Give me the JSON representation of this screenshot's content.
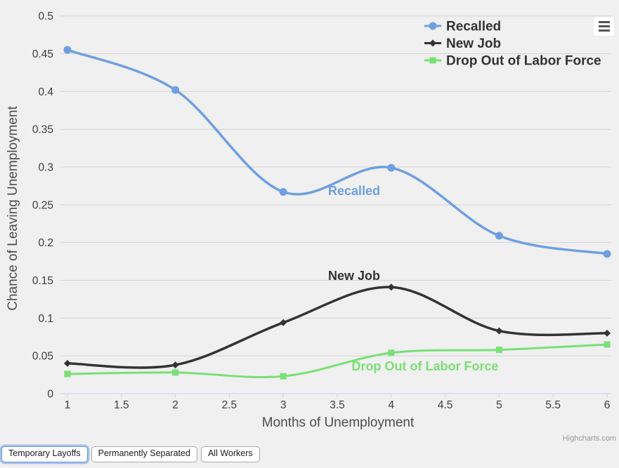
{
  "chart_data": {
    "type": "line",
    "title": "",
    "x": [
      1,
      2,
      3,
      4,
      5,
      6
    ],
    "series": [
      {
        "name": "Recalled",
        "color": "#6f9fe0",
        "marker": "circle",
        "values": [
          0.455,
          0.402,
          0.267,
          0.299,
          0.209,
          0.185
        ]
      },
      {
        "name": "New Job",
        "color": "#333333",
        "marker": "diamond",
        "values": [
          0.04,
          0.038,
          0.094,
          0.141,
          0.083,
          0.08
        ]
      },
      {
        "name": "Drop Out of Labor Force",
        "color": "#79e076",
        "marker": "square",
        "values": [
          0.026,
          0.028,
          0.023,
          0.054,
          0.058,
          0.065
        ]
      }
    ],
    "xlabel": "Months of Unemployment",
    "ylabel": "Chance of Leaving Unemployment",
    "xlim": [
      1,
      6
    ],
    "ylim": [
      0,
      0.5
    ],
    "x_ticks": [
      1,
      1.5,
      2,
      2.5,
      3,
      3.5,
      4,
      4.5,
      5,
      5.5,
      6
    ],
    "y_ticks": [
      0,
      0.05,
      0.1,
      0.15,
      0.2,
      0.25,
      0.3,
      0.35,
      0.4,
      0.45,
      0.5
    ],
    "grid": "horizontal-only",
    "legend_position": "top-right",
    "inline_series_labels": true
  },
  "legend": {
    "items": [
      "Recalled",
      "New Job",
      "Drop Out of Labor Force"
    ]
  },
  "controls": {
    "buttons": [
      {
        "label": "Temporary Layoffs",
        "selected": true
      },
      {
        "label": "Permanently Separated",
        "selected": false
      },
      {
        "label": "All Workers",
        "selected": false
      }
    ]
  },
  "credit": {
    "text": "Highcharts.com"
  },
  "colors": {
    "background": "#f0f0f0",
    "gridline": "#d4d4d4",
    "axis_line": "#ccd6eb",
    "tick_label": "#3c3c3c",
    "axis_title": "#4d4d4d",
    "legend_text": "#333333",
    "credit_text": "#999999"
  }
}
